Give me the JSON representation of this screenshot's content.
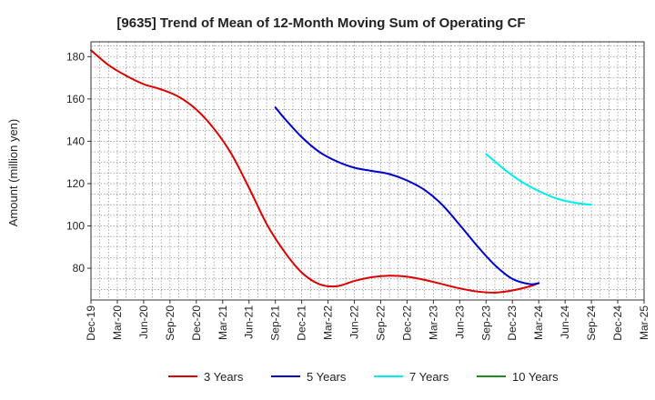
{
  "chart_data": {
    "type": "line",
    "title": "[9635]  Trend of Mean of 12-Month Moving Sum of Operating CF",
    "xlabel": "",
    "ylabel": "Amount (million yen)",
    "ylim": [
      65,
      187
    ],
    "yticks": [
      80,
      100,
      120,
      140,
      160,
      180
    ],
    "x_start": "Dec-19",
    "x_months": 63,
    "x_tick_step": 3,
    "xticks": [
      "Dec-19",
      "Mar-20",
      "Jun-20",
      "Sep-20",
      "Dec-20",
      "Mar-21",
      "Jun-21",
      "Sep-21",
      "Dec-21",
      "Mar-22",
      "Jun-22",
      "Sep-22",
      "Dec-22",
      "Mar-23",
      "Jun-23",
      "Sep-23",
      "Dec-23",
      "Mar-24",
      "Jun-24",
      "Sep-24",
      "Dec-24",
      "Mar-25"
    ],
    "grid": true,
    "legend_position": "bottom",
    "series": [
      {
        "name": "3 Years",
        "color": "#dd0000",
        "points": [
          [
            0,
            183
          ],
          [
            2,
            176
          ],
          [
            4,
            171
          ],
          [
            6,
            167
          ],
          [
            8,
            164.5
          ],
          [
            10,
            161
          ],
          [
            12,
            155
          ],
          [
            14,
            146
          ],
          [
            16,
            134
          ],
          [
            18,
            118
          ],
          [
            20,
            101
          ],
          [
            22,
            88
          ],
          [
            24,
            78
          ],
          [
            26,
            72.5
          ],
          [
            28,
            71.5
          ],
          [
            30,
            74
          ],
          [
            32,
            75.8
          ],
          [
            34,
            76.5
          ],
          [
            36,
            76
          ],
          [
            38,
            74.5
          ],
          [
            40,
            72.5
          ],
          [
            42,
            70.5
          ],
          [
            44,
            69
          ],
          [
            46,
            68.5
          ],
          [
            48,
            69.5
          ],
          [
            50,
            71.5
          ],
          [
            51,
            73
          ]
        ]
      },
      {
        "name": "5 Years",
        "color": "#0000cc",
        "points": [
          [
            21,
            156
          ],
          [
            22,
            151
          ],
          [
            24,
            142
          ],
          [
            26,
            135
          ],
          [
            28,
            130.5
          ],
          [
            30,
            127.5
          ],
          [
            32,
            126
          ],
          [
            34,
            124.5
          ],
          [
            36,
            121.5
          ],
          [
            38,
            117
          ],
          [
            40,
            110
          ],
          [
            42,
            100.5
          ],
          [
            44,
            90.5
          ],
          [
            46,
            81.5
          ],
          [
            48,
            75
          ],
          [
            50,
            72.5
          ],
          [
            51,
            73
          ]
        ]
      },
      {
        "name": "7 Years",
        "color": "#00eeee",
        "points": [
          [
            45,
            134
          ],
          [
            47,
            127
          ],
          [
            49,
            121
          ],
          [
            51,
            116.5
          ],
          [
            53,
            113
          ],
          [
            55,
            111
          ],
          [
            57,
            110
          ]
        ]
      },
      {
        "name": "10 Years",
        "color": "#228b22",
        "points": []
      }
    ]
  }
}
